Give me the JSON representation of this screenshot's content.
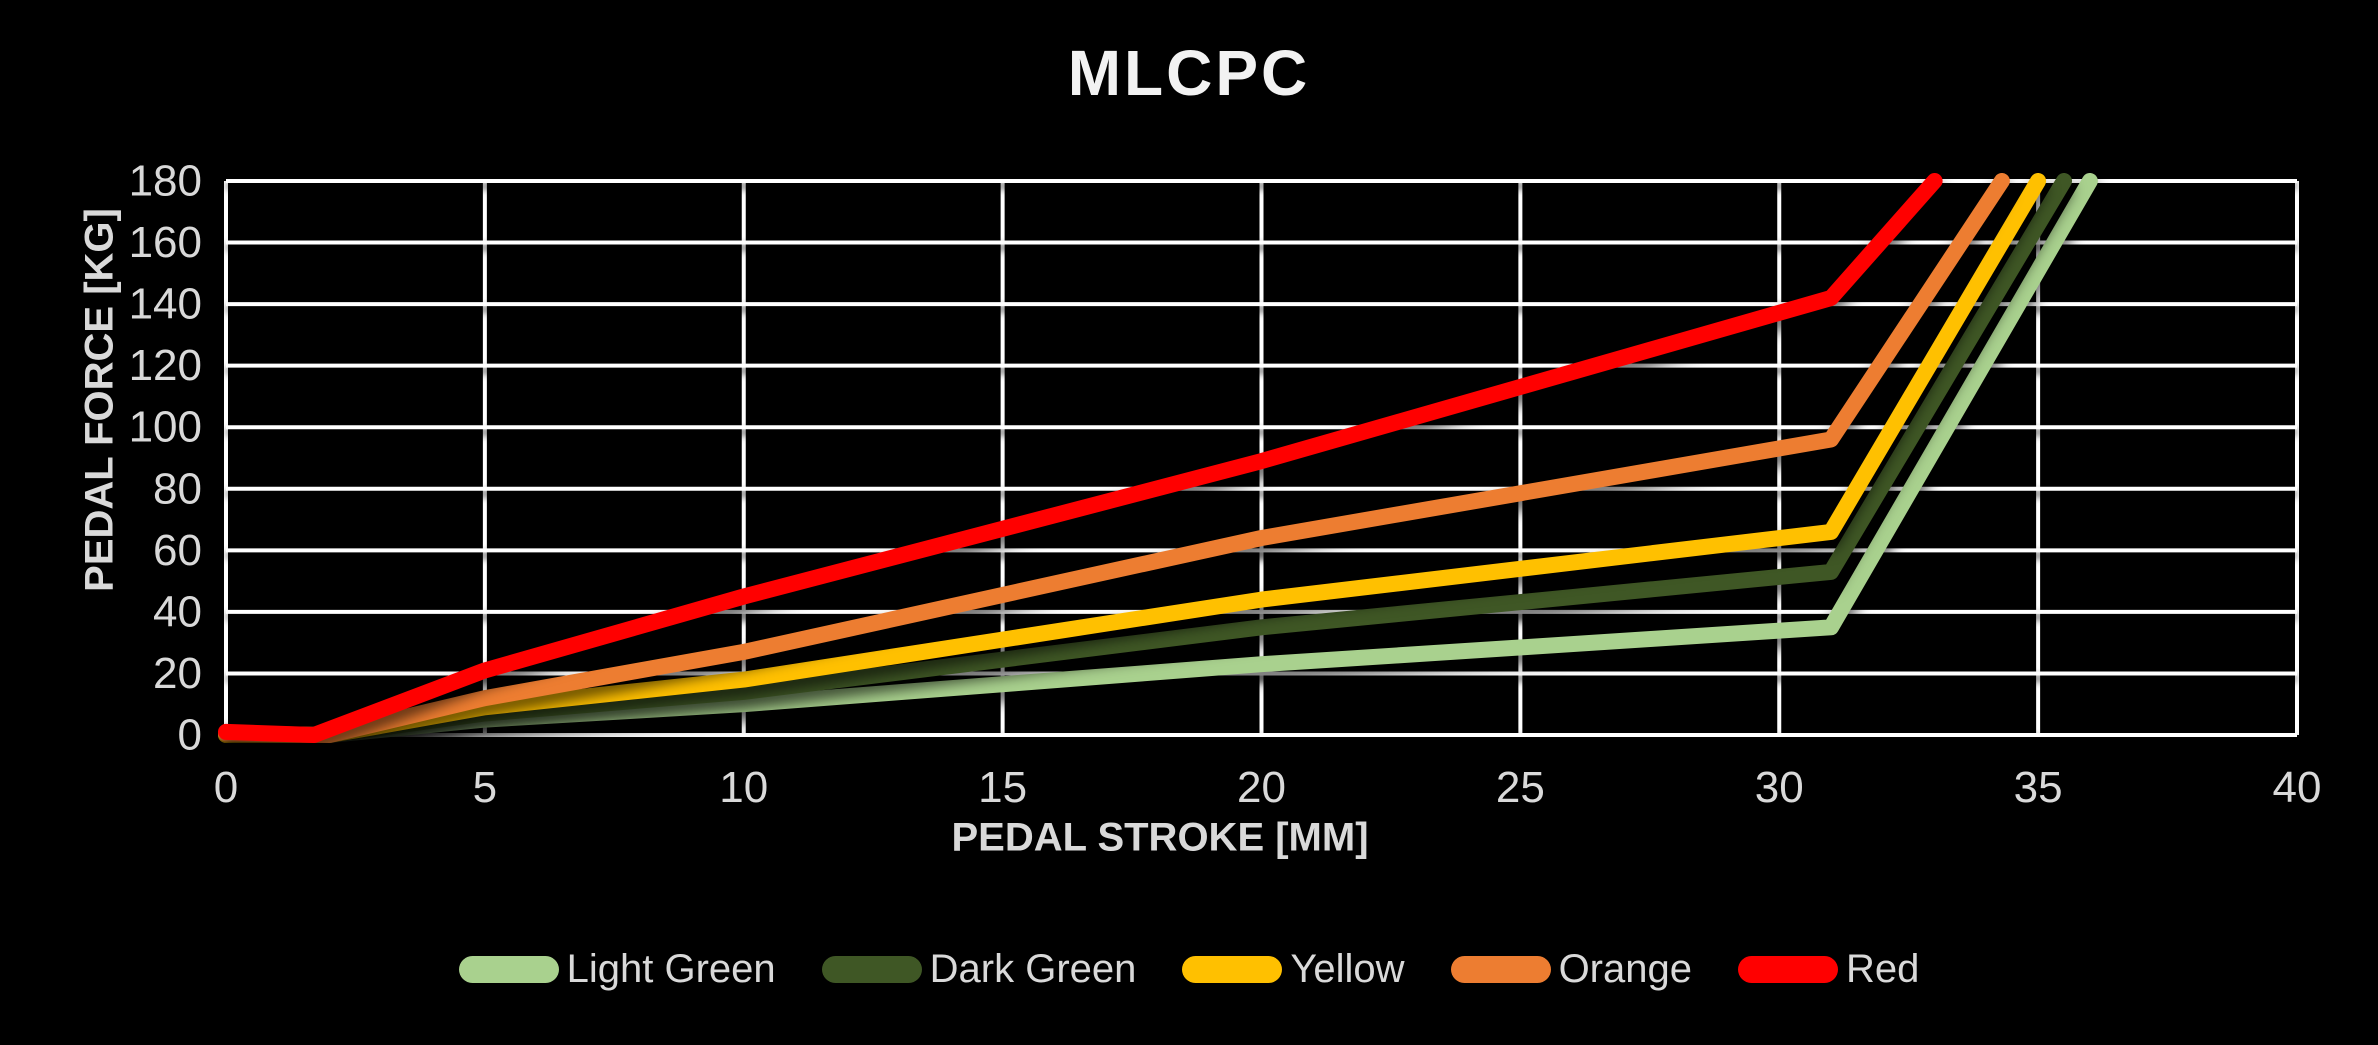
{
  "chart_data": {
    "type": "line",
    "title": "MLCPC",
    "xlabel": "PEDAL STROKE [MM]",
    "ylabel": "PEDAL FORCE [KG]",
    "xlim": [
      0,
      40
    ],
    "ylim": [
      0,
      180
    ],
    "x_ticks": [
      0,
      5,
      10,
      15,
      20,
      25,
      30,
      35,
      40
    ],
    "y_ticks": [
      0,
      20,
      40,
      60,
      80,
      100,
      120,
      140,
      160,
      180
    ],
    "grid": true,
    "legend_position": "bottom",
    "background_color": "#000000",
    "gridline_color": "#FFFFFF",
    "tick_text_color": "#D9D9D9",
    "title_color": "#F2F2F2",
    "series": [
      {
        "name": "Light Green",
        "color": "#A9D18E",
        "points": [
          [
            0,
            0
          ],
          [
            2,
            0
          ],
          [
            5,
            5
          ],
          [
            10,
            10
          ],
          [
            20,
            23
          ],
          [
            31,
            35
          ],
          [
            36,
            180
          ]
        ]
      },
      {
        "name": "Dark Green",
        "color": "#3F5725",
        "points": [
          [
            0,
            0
          ],
          [
            2,
            0
          ],
          [
            5,
            7
          ],
          [
            10,
            14
          ],
          [
            20,
            35
          ],
          [
            31,
            53
          ],
          [
            35.5,
            180
          ]
        ]
      },
      {
        "name": "Yellow",
        "color": "#FFC000",
        "points": [
          [
            0,
            0
          ],
          [
            2,
            0
          ],
          [
            5,
            9
          ],
          [
            10,
            18
          ],
          [
            20,
            44
          ],
          [
            31,
            66
          ],
          [
            35,
            180
          ]
        ]
      },
      {
        "name": "Orange",
        "color": "#ED7D31",
        "points": [
          [
            0,
            0.5
          ],
          [
            2,
            0
          ],
          [
            5,
            12
          ],
          [
            10,
            27
          ],
          [
            20,
            64
          ],
          [
            31,
            96
          ],
          [
            34.3,
            180
          ]
        ]
      },
      {
        "name": "Red",
        "color": "#FF0000",
        "points": [
          [
            0,
            1
          ],
          [
            1.7,
            0
          ],
          [
            5,
            21
          ],
          [
            10,
            45
          ],
          [
            20,
            89
          ],
          [
            31,
            142
          ],
          [
            33,
            180
          ]
        ]
      }
    ]
  }
}
